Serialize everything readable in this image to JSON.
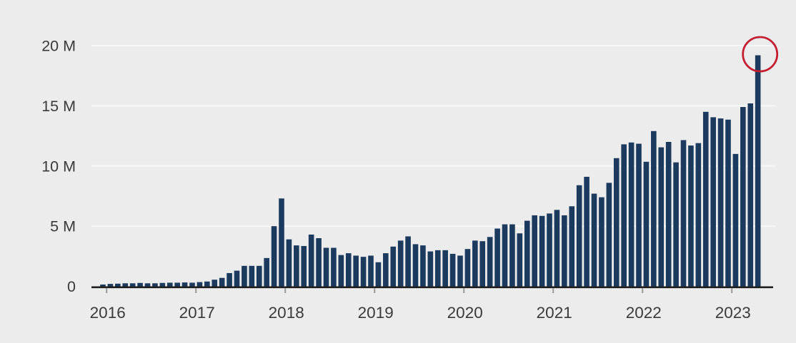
{
  "chart_data": {
    "type": "bar",
    "title": "",
    "unit": "M",
    "ylabel": "",
    "xlabel": "",
    "ylim": [
      0,
      21
    ],
    "grid": "horizontal",
    "legend": "none",
    "yticks": [
      {
        "v": 0,
        "label": "0"
      },
      {
        "v": 5,
        "label": "5 M"
      },
      {
        "v": 10,
        "label": "10 M"
      },
      {
        "v": 15,
        "label": "15 M"
      },
      {
        "v": 20,
        "label": "20 M"
      }
    ],
    "xticks": [
      "2016",
      "2017",
      "2018",
      "2019",
      "2020",
      "2021",
      "2022",
      "2023"
    ],
    "x": [
      "2015-12",
      "2016-01",
      "2016-02",
      "2016-03",
      "2016-04",
      "2016-05",
      "2016-06",
      "2016-07",
      "2016-08",
      "2016-09",
      "2016-10",
      "2016-11",
      "2016-12",
      "2017-01",
      "2017-02",
      "2017-03",
      "2017-04",
      "2017-05",
      "2017-06",
      "2017-07",
      "2017-08",
      "2017-09",
      "2017-10",
      "2017-11",
      "2017-12",
      "2018-01",
      "2018-02",
      "2018-03",
      "2018-04",
      "2018-05",
      "2018-06",
      "2018-07",
      "2018-08",
      "2018-09",
      "2018-10",
      "2018-11",
      "2018-12",
      "2019-01",
      "2019-02",
      "2019-03",
      "2019-04",
      "2019-05",
      "2019-06",
      "2019-07",
      "2019-08",
      "2019-09",
      "2019-10",
      "2019-11",
      "2019-12",
      "2020-01",
      "2020-02",
      "2020-03",
      "2020-04",
      "2020-05",
      "2020-06",
      "2020-07",
      "2020-08",
      "2020-09",
      "2020-10",
      "2020-11",
      "2020-12",
      "2021-01",
      "2021-02",
      "2021-03",
      "2021-04",
      "2021-05",
      "2021-06",
      "2021-07",
      "2021-08",
      "2021-09",
      "2021-10",
      "2021-11",
      "2021-12",
      "2022-01",
      "2022-02",
      "2022-03",
      "2022-04",
      "2022-05",
      "2022-06",
      "2022-07",
      "2022-08",
      "2022-09",
      "2022-10",
      "2022-11",
      "2022-12",
      "2023-01",
      "2023-02",
      "2023-03",
      "2023-04"
    ],
    "values": [
      0.15,
      0.2,
      0.22,
      0.25,
      0.25,
      0.28,
      0.25,
      0.25,
      0.28,
      0.3,
      0.3,
      0.32,
      0.3,
      0.35,
      0.4,
      0.55,
      0.7,
      1.1,
      1.3,
      1.7,
      1.7,
      1.7,
      2.35,
      5.0,
      7.3,
      3.9,
      3.4,
      3.35,
      4.3,
      4.0,
      3.2,
      3.2,
      2.6,
      2.75,
      2.55,
      2.45,
      2.55,
      2.0,
      2.75,
      3.3,
      3.8,
      4.15,
      3.5,
      3.4,
      2.9,
      3.0,
      3.0,
      2.7,
      2.55,
      3.1,
      3.8,
      3.75,
      4.1,
      4.8,
      5.15,
      5.15,
      4.4,
      5.45,
      5.9,
      5.85,
      6.05,
      6.35,
      5.9,
      6.65,
      8.4,
      9.1,
      7.7,
      7.4,
      8.6,
      10.65,
      11.8,
      11.95,
      11.85,
      10.35,
      12.9,
      11.55,
      12.0,
      10.3,
      12.15,
      11.7,
      11.9,
      14.5,
      14.05,
      13.95,
      13.85,
      11.0,
      14.9,
      15.2,
      19.2
    ],
    "annotation": {
      "shape": "circle",
      "target_month": "2023-04",
      "color": "#c41f30"
    }
  },
  "colors": {
    "background": "#ececec",
    "bar": "#1c3a5e",
    "gridline": "#f8f8f8",
    "axis": "#1f1f1f",
    "tick": "#9a9a9a",
    "label": "#3a3a3a",
    "highlight": "#c41f30"
  }
}
